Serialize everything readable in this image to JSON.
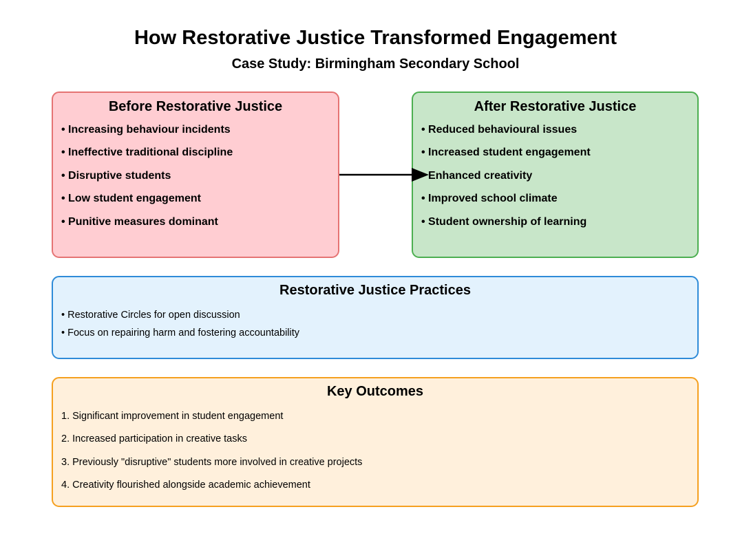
{
  "header": {
    "title": "How Restorative Justice Transformed Engagement",
    "subtitle": "Case Study: Birmingham Secondary School"
  },
  "before": {
    "heading": "Before Restorative Justice",
    "items": [
      "• Increasing behaviour incidents",
      "• Ineffective traditional discipline",
      "• Disruptive students",
      "• Low student engagement",
      "• Punitive measures dominant"
    ]
  },
  "after": {
    "heading": "After Restorative Justice",
    "items": [
      "• Reduced behavioural issues",
      "• Increased student engagement",
      "• Enhanced creativity",
      "• Improved school climate",
      "• Student ownership of learning"
    ]
  },
  "practices": {
    "heading": "Restorative Justice Practices",
    "items": [
      "• Restorative Circles for open discussion",
      "• Focus on repairing harm and fostering accountability"
    ]
  },
  "outcomes": {
    "heading": "Key Outcomes",
    "items": [
      "1. Significant improvement in student engagement",
      "2. Increased participation in creative tasks",
      "3. Previously \"disruptive\" students more involved in creative projects",
      "4. Creativity flourished alongside academic achievement"
    ]
  },
  "colors": {
    "before_fill": "#ffcdd2",
    "before_border": "#e57373",
    "after_fill": "#c8e6c9",
    "after_border": "#4caf50",
    "practices_fill": "#e3f2fd",
    "practices_border": "#2e8bd8",
    "outcomes_fill": "#fff0dc",
    "outcomes_border": "#f5a01f",
    "arrow": "#000000"
  }
}
